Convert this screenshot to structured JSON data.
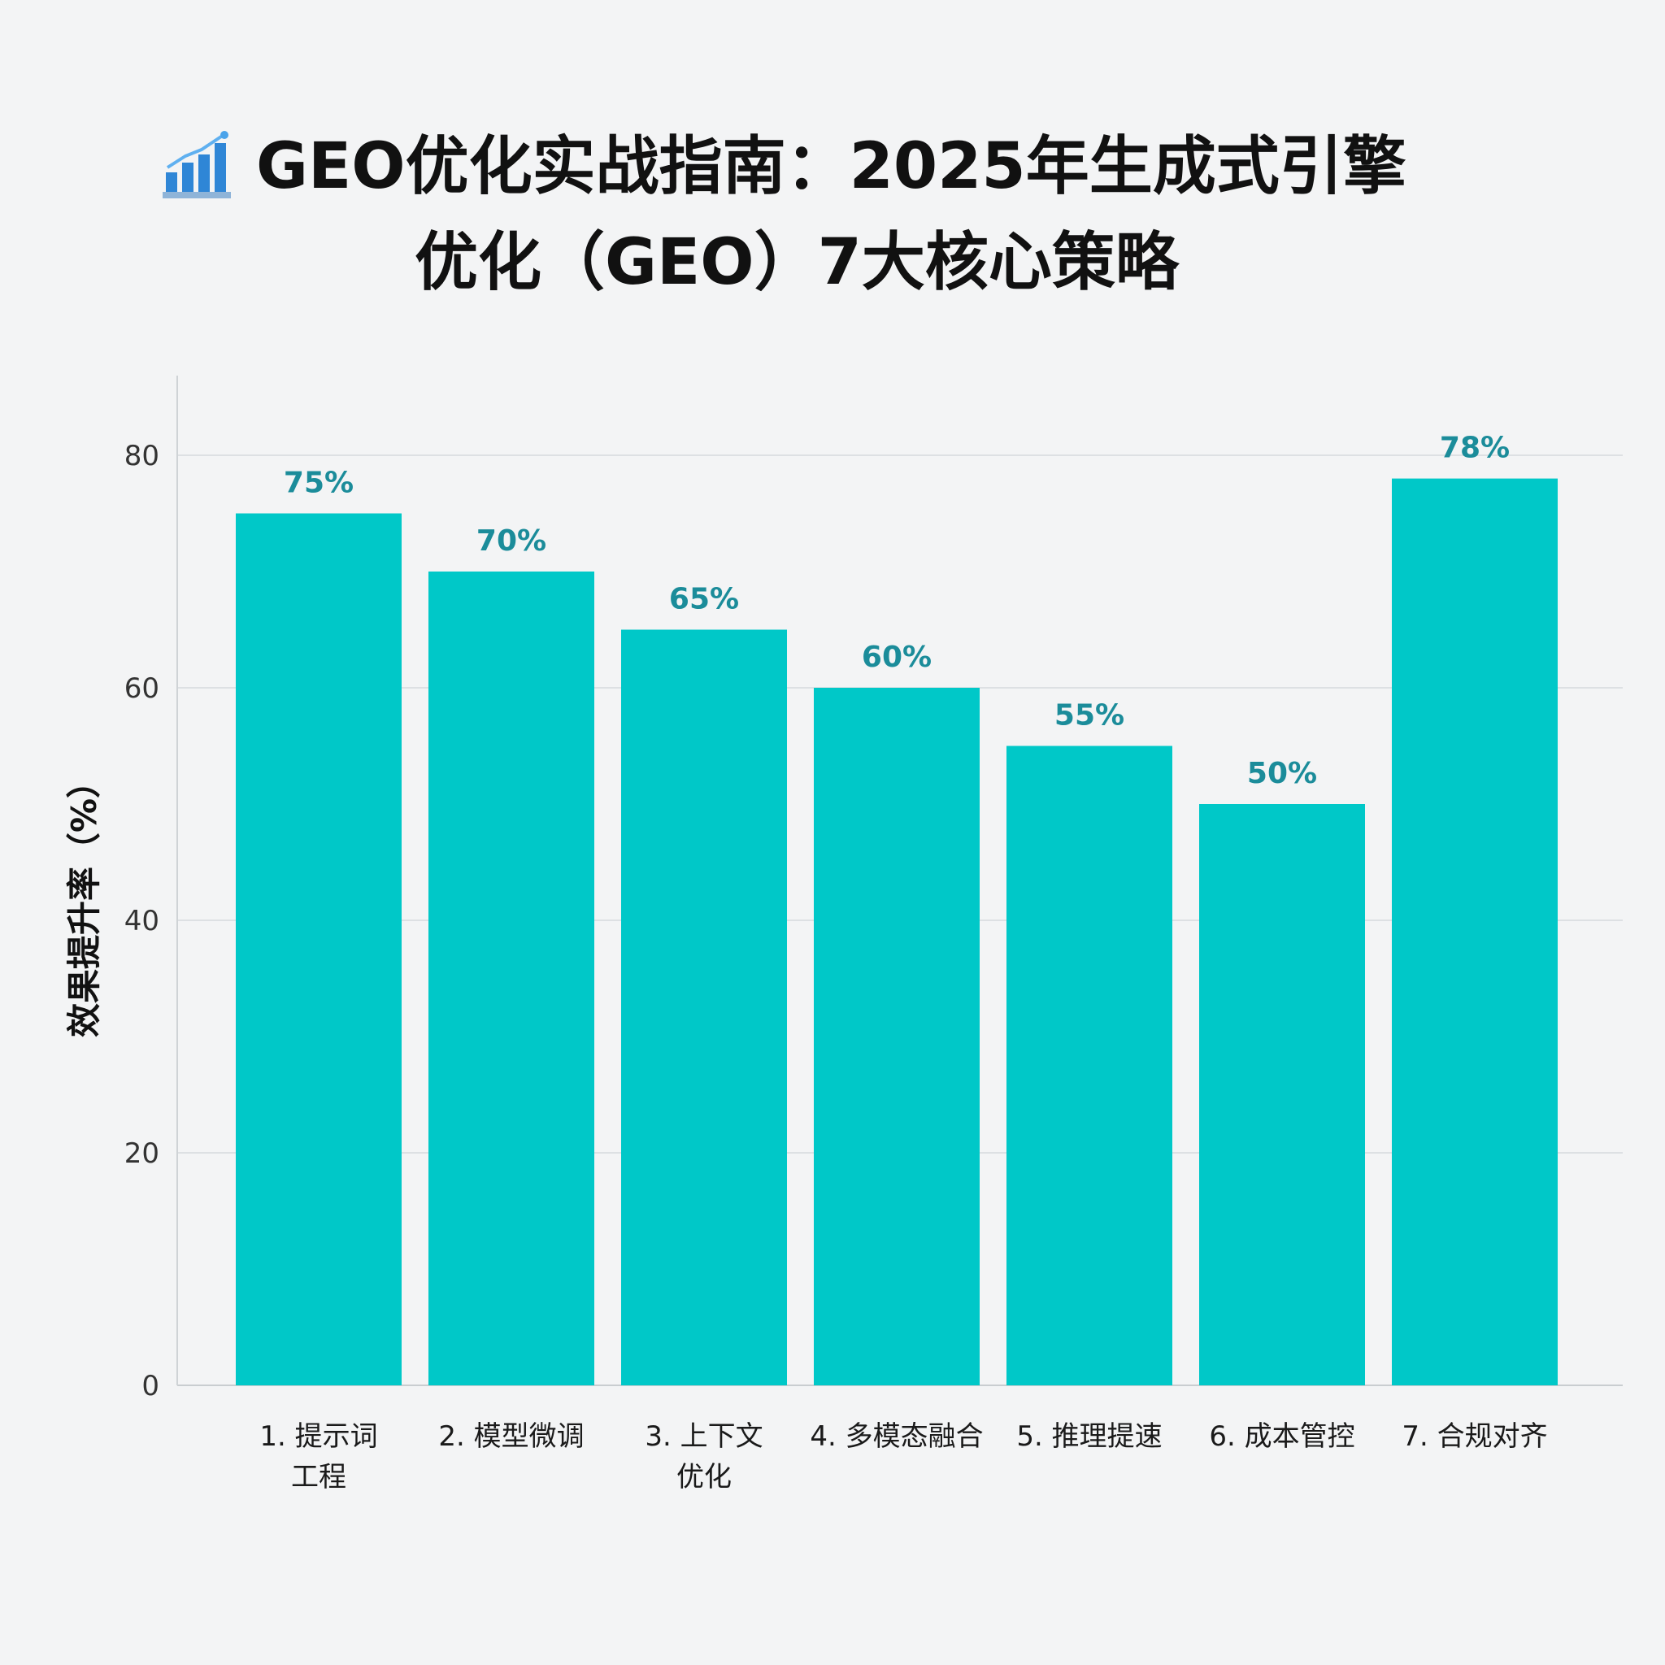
{
  "title_line1": "GEO优化实战指南：2025年生成式引擎",
  "title_line2": "优化（GEO）7大核心策略",
  "chart_data": {
    "type": "bar",
    "categories": [
      [
        "1. 提示词",
        "工程"
      ],
      [
        "2. 模型微调"
      ],
      [
        "3. 上下文",
        "优化"
      ],
      [
        "4. 多模态融合"
      ],
      [
        "5. 推理提速"
      ],
      [
        "6. 成本管控"
      ],
      [
        "7. 合规对齐"
      ]
    ],
    "values": [
      75,
      70,
      65,
      60,
      55,
      50,
      78
    ],
    "value_labels": [
      "75%",
      "70%",
      "65%",
      "60%",
      "55%",
      "50%",
      "78%"
    ],
    "ylabel": "效果提升率（%）",
    "xlabel": "",
    "ylim": [
      0,
      80
    ],
    "yticks": [
      0,
      20,
      40,
      60,
      80
    ],
    "grid": true,
    "bar_color": "#00c8c8",
    "label_color": "#1b8c9a"
  }
}
